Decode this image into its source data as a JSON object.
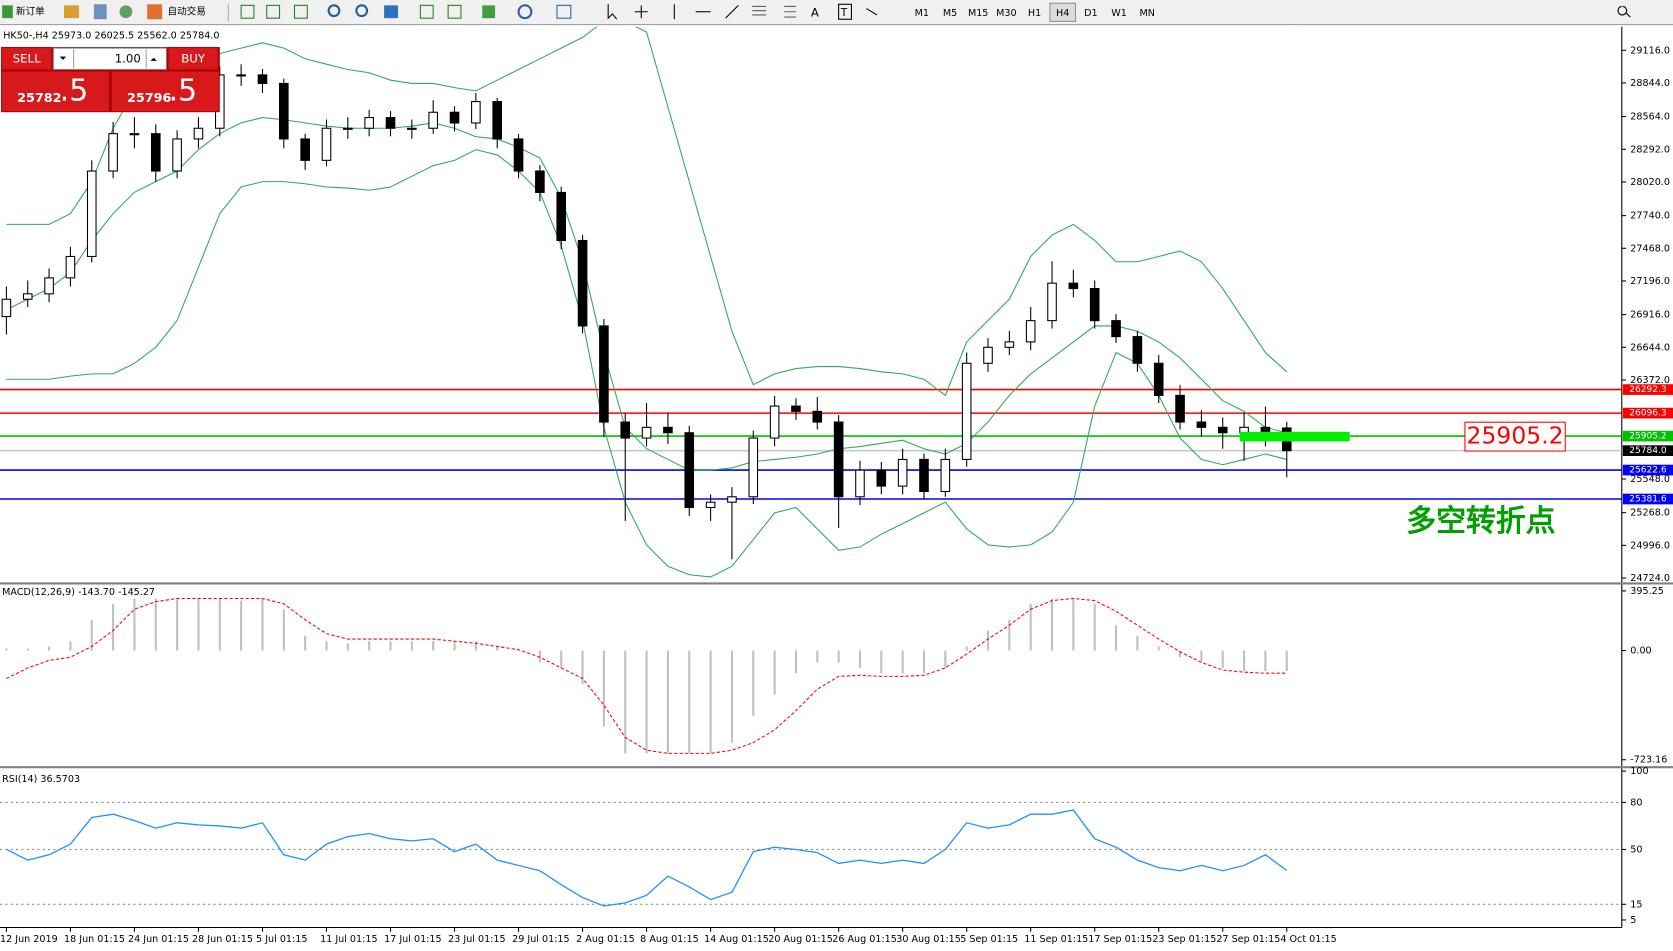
{
  "toolbar": {
    "new_order": "新订单",
    "auto_trading": "自动交易",
    "text_tool": "A",
    "text_label_tool": "T",
    "timeframes": [
      "M1",
      "M5",
      "M15",
      "M30",
      "H1",
      "H4",
      "D1",
      "W1",
      "MN"
    ]
  },
  "trade_panel": {
    "sell": "SELL",
    "buy": "BUY",
    "lots": "1.00",
    "bid": "25782",
    "bid_fraction": ".5",
    "ask": "25796",
    "ask_fraction": ".5"
  },
  "chart_data": [
    {
      "type": "candlestick",
      "title": "HK50-,H4  25973.0 26025.5 25562.0 25784.0",
      "categories": [
        "12 Jun 2019",
        null,
        null,
        "18 Jun 01:15",
        null,
        null,
        "24 Jun 01:15",
        null,
        null,
        "28 Jun 01:15",
        null,
        null,
        "5 Jul 01:15",
        null,
        null,
        "11 Jul 01:15",
        null,
        null,
        "17 Jul 01:15",
        null,
        null,
        "23 Jul 01:15",
        null,
        null,
        "29 Jul 01:15",
        null,
        null,
        "2 Aug 01:15",
        null,
        null,
        "8 Aug 01:15",
        null,
        null,
        "14 Aug 01:15",
        null,
        null,
        "20 Aug 01:15",
        null,
        null,
        "26 Aug 01:15",
        null,
        null,
        "30 Aug 01:15",
        null,
        null,
        "5 Sep 01:15",
        null,
        null,
        "11 Sep 01:15",
        null,
        null,
        "17 Sep 01:15",
        null,
        null,
        "23 Sep 01:15",
        null,
        null,
        "27 Sep 01:15",
        null,
        null,
        "4 Oct 01:15"
      ],
      "open": [
        26900,
        27044,
        27089,
        27222,
        27400,
        28111,
        28422,
        28422,
        28111,
        28378,
        28467,
        28911,
        28911,
        28840,
        28378,
        28200,
        28467,
        28467,
        28556,
        28467,
        28467,
        28600,
        28511,
        28689,
        28378,
        28111,
        27933,
        27533,
        26822,
        26022,
        25889,
        25978,
        25933,
        25311,
        25355,
        25400,
        25889,
        26155,
        26111,
        26022,
        25400,
        25622,
        25489,
        25711,
        25444,
        25711,
        26511,
        26644,
        26689,
        26866,
        27178,
        27133,
        26866,
        26733,
        26511,
        26244,
        26022,
        25978,
        25933,
        25978,
        25973
      ],
      "high": [
        27150,
        27200,
        27300,
        27480,
        28200,
        28520,
        28560,
        28500,
        28450,
        28560,
        28980,
        29000,
        28960,
        28880,
        28420,
        28540,
        28560,
        28620,
        28610,
        28540,
        28700,
        28650,
        28760,
        28720,
        28420,
        28160,
        27980,
        27580,
        26880,
        26100,
        26180,
        26100,
        25990,
        25420,
        25480,
        25950,
        26240,
        26220,
        26230,
        26080,
        25700,
        25690,
        25800,
        25760,
        25800,
        26600,
        26720,
        26780,
        26980,
        27360,
        27290,
        27200,
        26920,
        26780,
        26580,
        26330,
        26120,
        26060,
        26100,
        26150,
        26025.5
      ],
      "low": [
        26750,
        26980,
        27020,
        27150,
        27350,
        28050,
        28300,
        28020,
        28050,
        28300,
        28400,
        28820,
        28760,
        28300,
        28120,
        28150,
        28380,
        28400,
        28400,
        28380,
        28420,
        28440,
        28460,
        28300,
        28050,
        27860,
        27460,
        26760,
        25900,
        25200,
        25820,
        25840,
        25240,
        25200,
        24880,
        25340,
        25820,
        26040,
        25960,
        25140,
        25330,
        25420,
        25420,
        25380,
        25400,
        25650,
        26440,
        26580,
        26620,
        26800,
        27060,
        26800,
        26680,
        26440,
        26180,
        25960,
        25900,
        25800,
        25700,
        25820,
        25562
      ],
      "close": [
        27044,
        27089,
        27222,
        27400,
        28111,
        28422,
        28422,
        28111,
        28378,
        28467,
        28911,
        28911,
        28840,
        28378,
        28200,
        28467,
        28467,
        28556,
        28467,
        28467,
        28600,
        28511,
        28689,
        28378,
        28111,
        27933,
        27533,
        26822,
        26022,
        25889,
        25978,
        25933,
        25311,
        25355,
        25400,
        25889,
        26155,
        26111,
        26022,
        25400,
        25622,
        25489,
        25711,
        25444,
        25711,
        26511,
        26644,
        26689,
        26866,
        27178,
        27133,
        26866,
        26733,
        26511,
        26244,
        26022,
        25978,
        25933,
        25978,
        25889,
        25784
      ],
      "up_color": "#ffffff",
      "down_color": "#000000",
      "bands": {
        "color": "#2eaa5a",
        "upper": [
          27667,
          27667,
          27667,
          27756,
          28023,
          28467,
          28778,
          28912,
          29000,
          29045,
          29089,
          29134,
          29178,
          29134,
          29045,
          29000,
          28956,
          28929,
          28867,
          28840,
          28840,
          28805,
          28778,
          28867,
          28956,
          29045,
          29134,
          29223,
          29356,
          29356,
          29267,
          28645,
          28023,
          27400,
          26778,
          26333,
          26423,
          26467,
          26484,
          26484,
          26467,
          26440,
          26423,
          26378,
          26244,
          26689,
          26867,
          27045,
          27400,
          27578,
          27667,
          27534,
          27356,
          27356,
          27400,
          27445,
          27356,
          27133,
          26867,
          26600,
          26440
        ],
        "middle": [
          26956,
          27045,
          27133,
          27267,
          27534,
          27756,
          27934,
          28023,
          28111,
          28289,
          28423,
          28512,
          28556,
          28538,
          28512,
          28485,
          28467,
          28467,
          28467,
          28485,
          28512,
          28467,
          28396,
          28378,
          28308,
          28219,
          27889,
          27356,
          26600,
          25978,
          25800,
          25711,
          25622,
          25622,
          25640,
          25693,
          25711,
          25729,
          25756,
          25800,
          25818,
          25845,
          25871,
          25800,
          25756,
          25845,
          26022,
          26244,
          26423,
          26556,
          26689,
          26822,
          26822,
          26778,
          26689,
          26556,
          26378,
          26200,
          26111,
          25978,
          25933
        ],
        "lower": [
          26378,
          26378,
          26378,
          26404,
          26423,
          26423,
          26511,
          26644,
          26867,
          27311,
          27756,
          27978,
          28023,
          28023,
          28005,
          27978,
          27969,
          27951,
          27978,
          28067,
          28156,
          28200,
          28289,
          28245,
          28111,
          27934,
          27489,
          26867,
          25978,
          25355,
          25000,
          24822,
          24751,
          24733,
          24822,
          25044,
          25266,
          25311,
          25133,
          24955,
          24982,
          25089,
          25177,
          25266,
          25355,
          25133,
          25000,
          24982,
          25000,
          25106,
          25355,
          26155,
          26600,
          26511,
          26244,
          25889,
          25711,
          25667,
          25711,
          25756,
          25711
        ]
      },
      "ylim": [
        24688,
        29312
      ],
      "yticks": [
        {
          "value": 29116,
          "label": "29116.0"
        },
        {
          "value": 28844,
          "label": "28844.0"
        },
        {
          "value": 28564,
          "label": "28564.0"
        },
        {
          "value": 28292,
          "label": "28292.0"
        },
        {
          "value": 28020,
          "label": "28020.0"
        },
        {
          "value": 27740,
          "label": "27740.0"
        },
        {
          "value": 27468,
          "label": "27468.0"
        },
        {
          "value": 27196,
          "label": "27196.0"
        },
        {
          "value": 26916,
          "label": "26916.0"
        },
        {
          "value": 26644,
          "label": "26644.0"
        },
        {
          "value": 26372,
          "label": "26372.0"
        },
        {
          "value": 25548,
          "label": "25548.0"
        },
        {
          "value": 25268,
          "label": "25268.0"
        },
        {
          "value": 24996,
          "label": "24996.0"
        },
        {
          "value": 24724,
          "label": "24724.0"
        }
      ],
      "levels": [
        {
          "value": 26292.3,
          "color": "#ff0000"
        },
        {
          "value": 26096.3,
          "color": "#ff0000"
        },
        {
          "value": 25905.2,
          "color": "#00c000"
        },
        {
          "value": 25784,
          "label": "25784.0",
          "color": "#c8c8c8",
          "box_color": "#000000"
        },
        {
          "value": 25622.6,
          "color": "#0000ff"
        },
        {
          "value": 25381.6,
          "color": "#0000ff"
        }
      ],
      "annotations": [
        {
          "value": 25905.2,
          "color": "#ff0000",
          "bar_color": "#00ee00"
        },
        {
          "text": "多空转折点",
          "color": "#00a000"
        }
      ]
    },
    {
      "type": "macd",
      "title": "MACD(12,26,9) -143.70 -145.27",
      "histogram": [
        13,
        13,
        27,
        62,
        204,
        310,
        345,
        345,
        345,
        345,
        345,
        331,
        345,
        274,
        98,
        62,
        48,
        62,
        62,
        62,
        62,
        62,
        62,
        27,
        6,
        -79,
        -115,
        -221,
        -504,
        -681,
        -681,
        -681,
        -681,
        -681,
        -610,
        -433,
        -292,
        -150,
        -79,
        -79,
        -115,
        -150,
        -150,
        -150,
        -115,
        27,
        133,
        204,
        310,
        345,
        345,
        310,
        168,
        98,
        27,
        -44,
        -79,
        -115,
        -136,
        -136,
        -136
      ],
      "histogram_color": "#c0c0c0",
      "signal": [
        -185,
        -115,
        -65,
        -44,
        27,
        133,
        274,
        324,
        345,
        345,
        345,
        345,
        345,
        310,
        204,
        112,
        76,
        76,
        76,
        76,
        76,
        62,
        48,
        27,
        6,
        -44,
        -115,
        -185,
        -362,
        -575,
        -660,
        -681,
        -681,
        -681,
        -660,
        -610,
        -525,
        -398,
        -256,
        -171,
        -164,
        -171,
        -171,
        -164,
        -115,
        -23,
        76,
        168,
        274,
        331,
        345,
        331,
        260,
        168,
        76,
        -8,
        -79,
        -129,
        -143,
        -150,
        -150
      ],
      "signal_color": "#ff0000",
      "ylim": [
        -765.6,
        437.7
      ],
      "yticks": [
        395.25,
        {
          "value": 0,
          "label": "0.00"
        },
        -723.16
      ]
    },
    {
      "type": "line",
      "title": "RSI(14) 36.5703",
      "values": [
        50,
        43.2,
        46.6,
        53.4,
        70.4,
        72.5,
        68.4,
        63.6,
        67,
        65.7,
        65,
        63.6,
        67,
        46.6,
        43.2,
        53.4,
        58.2,
        60.2,
        56.8,
        55.5,
        56.8,
        48.6,
        53.4,
        43.2,
        39.8,
        36.4,
        27.5,
        19.3,
        13.9,
        15.9,
        20.7,
        33,
        26.1,
        18,
        22.7,
        48.6,
        51.4,
        50,
        48,
        41.1,
        43.2,
        41.1,
        43.2,
        41.1,
        50,
        67,
        63.6,
        65.7,
        72.5,
        72.5,
        75.2,
        56.8,
        51.4,
        43.2,
        38.4,
        36.4,
        39.8,
        36.4,
        39.8,
        46.6,
        36.5703
      ],
      "color": "#1e90ff",
      "ylim": [
        0.2,
        101.8
      ],
      "yticks": [
        100,
        80,
        50,
        15,
        5
      ],
      "levels": [
        80,
        50,
        15
      ]
    }
  ]
}
